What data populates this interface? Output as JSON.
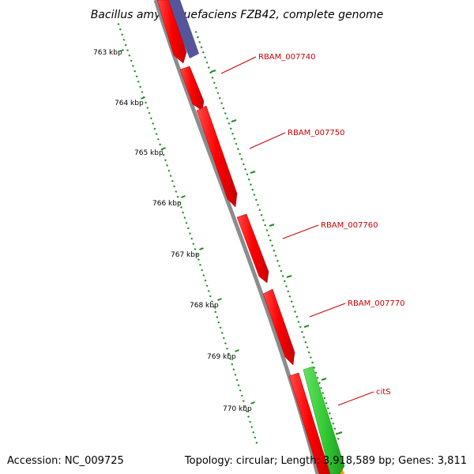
{
  "title": "Bacillus amyloliquefaciens FZB42, complete genome",
  "footer": {
    "accession": "Accession: NC_009725",
    "summary": "Topology: circular; Length: 3,918,589 bp; Genes: 3,811"
  },
  "kbp_ticks": [
    {
      "label": "763 kbp",
      "kbp": 763
    },
    {
      "label": "764 kbp",
      "kbp": 764
    },
    {
      "label": "765 kbp",
      "kbp": 765
    },
    {
      "label": "766 kbp",
      "kbp": 766
    },
    {
      "label": "767 kbp",
      "kbp": 767
    },
    {
      "label": "768 kbp",
      "kbp": 768
    },
    {
      "label": "769 kbp",
      "kbp": 769
    },
    {
      "label": "770 kbp",
      "kbp": 770
    }
  ],
  "genes": [
    {
      "name": "RBAM_007740",
      "strand": "reverse",
      "color": "#ff0000",
      "labeled": true
    },
    {
      "name": "RBAM_007750",
      "strand": "reverse",
      "color": "#ff0000",
      "labeled": true
    },
    {
      "name": "RBAM_007760",
      "strand": "reverse",
      "color": "#ff0000",
      "labeled": true
    },
    {
      "name": "RBAM_007770",
      "strand": "reverse",
      "color": "#ff0000",
      "labeled": true
    },
    {
      "name": "citS",
      "strand": "forward",
      "color": "#33cc33",
      "labeled": true
    }
  ],
  "colors": {
    "backbone": "#8c8c8c",
    "ruler": "#228b22",
    "gene_reverse": "#ff0000",
    "gene_forward": "#33cc33",
    "gene_other": "#555599",
    "label": "#cc0000"
  }
}
